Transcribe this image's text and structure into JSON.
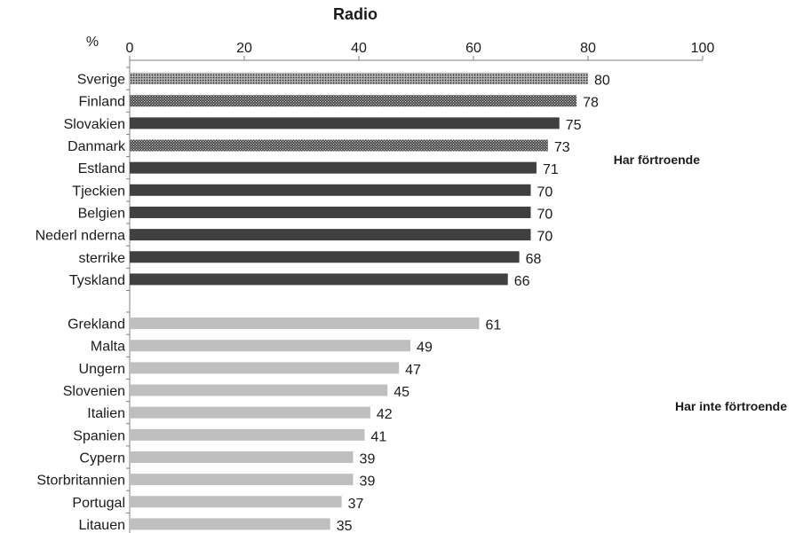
{
  "chart_data": {
    "type": "bar",
    "orientation": "horizontal",
    "title": "Radio",
    "unit_label": "%",
    "xlim": [
      0,
      100
    ],
    "x_ticks": [
      0,
      20,
      40,
      60,
      80,
      100
    ],
    "grid": false,
    "groups": [
      {
        "label": "Har förtroende",
        "color": "#404040",
        "bars": [
          {
            "category": "Sverige",
            "value": 80,
            "pattern": "dotted-light"
          },
          {
            "category": "Finland",
            "value": 78,
            "pattern": "dotted-dark"
          },
          {
            "category": "Slovakien",
            "value": 75,
            "pattern": "solid"
          },
          {
            "category": "Danmark",
            "value": 73,
            "pattern": "dotted-dark"
          },
          {
            "category": "Estland",
            "value": 71,
            "pattern": "solid"
          },
          {
            "category": "Tjeckien",
            "value": 70,
            "pattern": "solid"
          },
          {
            "category": "Belgien",
            "value": 70,
            "pattern": "solid"
          },
          {
            "category": "Nederl  nderna",
            "value": 70,
            "pattern": "solid"
          },
          {
            "category": "sterrike",
            "value": 68,
            "pattern": "solid"
          },
          {
            "category": "Tyskland",
            "value": 66,
            "pattern": "solid"
          }
        ]
      },
      {
        "label": "Har inte förtroende",
        "color": "#bfbfbf",
        "bars": [
          {
            "category": "Grekland",
            "value": 61,
            "pattern": "solid"
          },
          {
            "category": "Malta",
            "value": 49,
            "pattern": "solid"
          },
          {
            "category": "Ungern",
            "value": 47,
            "pattern": "solid"
          },
          {
            "category": "Slovenien",
            "value": 45,
            "pattern": "solid"
          },
          {
            "category": "Italien",
            "value": 42,
            "pattern": "solid"
          },
          {
            "category": "Spanien",
            "value": 41,
            "pattern": "solid"
          },
          {
            "category": "Cypern",
            "value": 39,
            "pattern": "solid"
          },
          {
            "category": "Storbritannien",
            "value": 39,
            "pattern": "solid"
          },
          {
            "category": "Portugal",
            "value": 37,
            "pattern": "solid"
          },
          {
            "category": "Litauen",
            "value": 35,
            "pattern": "solid"
          }
        ]
      }
    ]
  }
}
